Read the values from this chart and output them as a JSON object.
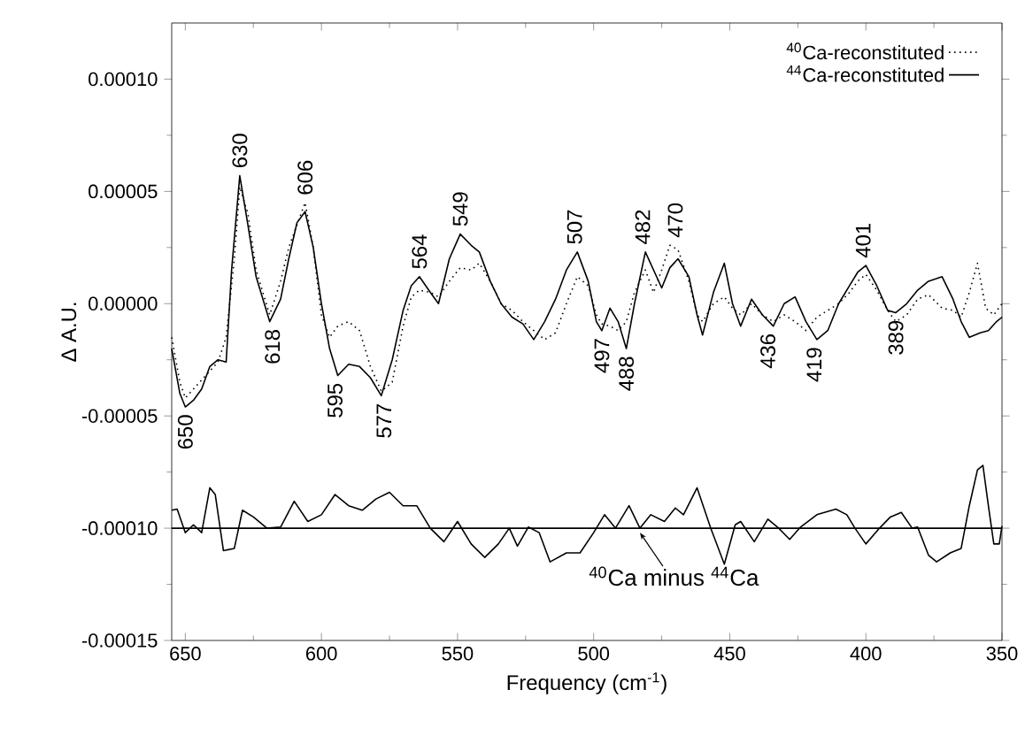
{
  "chart_data": {
    "type": "line",
    "xlabel": "Frequency (cm$^{-1}$)",
    "ylabel": "Δ A.U.",
    "xlim": [
      655,
      350
    ],
    "ylim": [
      -0.00015,
      0.000125
    ],
    "xticks": [
      650,
      600,
      550,
      500,
      450,
      400,
      350
    ],
    "yticks": [
      {
        "value": -0.00015,
        "label": "-0.00015"
      },
      {
        "value": -0.0001,
        "label": "-0.00010"
      },
      {
        "value": -5e-05,
        "label": "-0.00005"
      },
      {
        "value": 0,
        "label": "0.00000"
      },
      {
        "value": 5e-05,
        "label": "0.00005"
      },
      {
        "value": 0.0001,
        "label": "0.00010"
      }
    ],
    "legend": "top right",
    "series": [
      {
        "name": "$^{40}$Ca-reconstituted",
        "color": "#000000",
        "line_style": "dotted",
        "x": [
          655,
          652,
          650,
          647,
          644,
          641,
          638,
          635,
          632,
          630,
          627,
          624,
          619,
          615,
          612,
          609,
          606,
          603,
          600,
          597,
          594,
          590,
          586,
          582,
          578,
          574,
          570,
          567,
          564,
          560,
          557,
          553,
          549,
          545,
          542,
          538,
          534,
          530,
          526,
          522,
          518,
          514,
          510,
          506,
          502,
          499,
          497,
          494,
          491,
          488,
          485,
          481,
          478,
          475,
          472,
          469,
          465,
          462,
          460,
          456,
          452,
          449,
          446,
          442,
          438,
          434,
          430,
          426,
          422,
          418,
          414,
          410,
          406,
          403,
          400,
          396,
          392,
          389,
          385,
          381,
          377,
          372,
          368,
          365,
          362,
          359,
          356,
          353,
          350
        ],
        "values": [
          -1.5e-05,
          -3.5e-05,
          -4.2e-05,
          -3.8e-05,
          -3.4e-05,
          -3e-05,
          -2.6e-05,
          -1.5e-05,
          2e-05,
          5.2e-05,
          4e-05,
          1.5e-05,
          -5e-06,
          1e-05,
          2.5e-05,
          3.5e-05,
          4.5e-05,
          2.5e-05,
          -5e-06,
          -1.5e-05,
          -1e-05,
          -8e-06,
          -1.2e-05,
          -2.8e-05,
          -3.9e-05,
          -3.5e-05,
          -1e-05,
          3e-06,
          6e-06,
          5e-06,
          3e-06,
          1e-05,
          1.6e-05,
          1.5e-05,
          1.8e-05,
          1e-05,
          0.0,
          -3e-06,
          -8e-06,
          -1.2e-05,
          -1.6e-05,
          -1.3e-05,
          0.0,
          1.2e-05,
          8e-06,
          -5e-06,
          -9e-06,
          -1e-05,
          -1.2e-05,
          -8e-06,
          5e-06,
          1.5e-05,
          5e-06,
          1.5e-05,
          2.6e-05,
          2.4e-05,
          1e-05,
          -5e-06,
          -8e-06,
          0.0,
          3e-06,
          -2e-06,
          -5e-06,
          0.0,
          -5e-06,
          -8e-06,
          -5e-06,
          -8e-06,
          -1.2e-05,
          -6e-06,
          -3e-06,
          0.0,
          5e-06,
          1e-05,
          1.3e-05,
          6e-06,
          -3e-06,
          -8e-06,
          -5e-06,
          2e-06,
          4e-06,
          -2e-06,
          -3e-06,
          -6e-06,
          5e-06,
          1.8e-05,
          -2e-06,
          -5e-06,
          0.0
        ]
      },
      {
        "name": "$^{44}$Ca-reconstituted",
        "color": "#000000",
        "line_style": "solid",
        "x": [
          655,
          652,
          650,
          647,
          644,
          641,
          638,
          635,
          633,
          630,
          627,
          624,
          619,
          615,
          612,
          609,
          606,
          603,
          600,
          597,
          594,
          590,
          586,
          582,
          578,
          574,
          570,
          567,
          564,
          560,
          557,
          553,
          549,
          545,
          542,
          538,
          534,
          530,
          526,
          522,
          518,
          514,
          510,
          506,
          502,
          499,
          497,
          494,
          491,
          488,
          485,
          481,
          478,
          475,
          472,
          469,
          465,
          462,
          460,
          456,
          452,
          449,
          446,
          442,
          438,
          434,
          430,
          426,
          422,
          418,
          414,
          410,
          406,
          403,
          400,
          396,
          392,
          389,
          385,
          381,
          377,
          372,
          368,
          365,
          362,
          358,
          355,
          352,
          350
        ],
        "values": [
          -2e-05,
          -4e-05,
          -4.6e-05,
          -4.3e-05,
          -3.8e-05,
          -2.8e-05,
          -2.5e-05,
          -2.6e-05,
          1.5e-05,
          5.7e-05,
          3.5e-05,
          1.2e-05,
          -8e-06,
          2e-06,
          2e-05,
          3.6e-05,
          4.1e-05,
          2.5e-05,
          0.0,
          -2e-05,
          -3.2e-05,
          -2.7e-05,
          -2.8e-05,
          -3.3e-05,
          -4.1e-05,
          -2.5e-05,
          -3e-06,
          8e-06,
          1.2e-05,
          5e-06,
          0.0,
          2e-05,
          3.1e-05,
          2.6e-05,
          2.3e-05,
          1e-05,
          0.0,
          -6e-06,
          -9e-06,
          -1.6e-05,
          -8e-06,
          2e-06,
          1.5e-05,
          2.3e-05,
          1e-05,
          -8e-06,
          -1.2e-05,
          -2e-06,
          -8e-06,
          -2e-05,
          0.0,
          2.3e-05,
          1.5e-05,
          7e-06,
          1.6e-05,
          2e-05,
          1.2e-05,
          -5e-06,
          -1.4e-05,
          5e-06,
          1.8e-05,
          0.0,
          -1e-05,
          2e-06,
          -5e-06,
          -1e-05,
          0.0,
          3e-06,
          -8e-06,
          -1.6e-05,
          -1.2e-05,
          0.0,
          8e-06,
          1.4e-05,
          1.7e-05,
          8e-06,
          -3e-06,
          -4e-06,
          0.0,
          6e-06,
          1e-05,
          1.2e-05,
          2e-06,
          -8e-06,
          -1.5e-05,
          -1.3e-05,
          -1.2e-05,
          -8e-06,
          -6e-06
        ]
      },
      {
        "color": "#000000",
        "line_style": "solid",
        "x": [
          655,
          653,
          650,
          647,
          644,
          641,
          639,
          636,
          632,
          629,
          625,
          620,
          615,
          610,
          605,
          600,
          595,
          590,
          585,
          580,
          575,
          570,
          565,
          560,
          555,
          550,
          545,
          540,
          535,
          531,
          528,
          524,
          520,
          516,
          510,
          505,
          500,
          496,
          492,
          487,
          483,
          479,
          474,
          470,
          467,
          462,
          457,
          452,
          448,
          446,
          441,
          436,
          432,
          428,
          424,
          418,
          411,
          407,
          404,
          400,
          395,
          391,
          387,
          383,
          381,
          377,
          374,
          369,
          365,
          362,
          359,
          357,
          355,
          353,
          351,
          350
        ],
        "values": [
          -9.2e-05,
          -9.15e-05,
          -0.000102,
          -9.85e-05,
          -0.000102,
          -8.2e-05,
          -8.5e-05,
          -0.00011,
          -0.000109,
          -9.2e-05,
          -9.5e-05,
          -0.0001,
          -9.95e-05,
          -8.8e-05,
          -9.7e-05,
          -9.4e-05,
          -8.5e-05,
          -9e-05,
          -9.2e-05,
          -8.7e-05,
          -8.4e-05,
          -9e-05,
          -9e-05,
          -0.0001,
          -0.000106,
          -9.7e-05,
          -0.000107,
          -0.000113,
          -0.000107,
          -0.0001,
          -0.000108,
          -9.95e-05,
          -0.000102,
          -0.000115,
          -0.000111,
          -0.000111,
          -0.000102,
          -9.4e-05,
          -0.0001,
          -9e-05,
          -0.0001,
          -9.4e-05,
          -9.7e-05,
          -9.1e-05,
          -9.4e-05,
          -8.2e-05,
          -0.0001,
          -0.000116,
          -9.85e-05,
          -9.7e-05,
          -0.000106,
          -9.6e-05,
          -0.0001,
          -0.000105,
          -9.95e-05,
          -9.4e-05,
          -9.15e-05,
          -9.4e-05,
          -0.0001,
          -0.000107,
          -0.0001,
          -9.5e-05,
          -9.3e-05,
          -0.0001,
          -9.95e-05,
          -0.000112,
          -0.000115,
          -0.000111,
          -0.000109,
          -9e-05,
          -7.4e-05,
          -7.2e-05,
          -9e-05,
          -0.000107,
          -0.000107,
          -9.9e-05
        ]
      }
    ],
    "ref_lines": [
      {
        "axis": "y",
        "value": -0.0001,
        "color": "#000000",
        "line_style": "solid"
      }
    ],
    "annotations": [
      {
        "text": "630",
        "x": 630,
        "y": 5.7e-05
      },
      {
        "text": "606",
        "x": 606,
        "y": 4.5e-05
      },
      {
        "text": "564",
        "x": 564,
        "y": 1.2e-05
      },
      {
        "text": "549",
        "x": 549,
        "y": 3.1e-05
      },
      {
        "text": "507",
        "x": 507,
        "y": 2.3e-05
      },
      {
        "text": "482",
        "x": 482,
        "y": 2.3e-05
      },
      {
        "text": "470",
        "x": 470,
        "y": 2.6e-05
      },
      {
        "text": "401",
        "x": 401,
        "y": 1.7e-05
      },
      {
        "text": "650",
        "x": 650,
        "y": -4.6e-05
      },
      {
        "text": "618",
        "x": 618,
        "y": -8e-06
      },
      {
        "text": "595",
        "x": 595,
        "y": -3.2e-05
      },
      {
        "text": "577",
        "x": 577,
        "y": -4.1e-05
      },
      {
        "text": "497",
        "x": 497,
        "y": -1.2e-05
      },
      {
        "text": "488",
        "x": 488,
        "y": -2e-05
      },
      {
        "text": "436",
        "x": 436,
        "y": -1e-05
      },
      {
        "text": "419",
        "x": 419,
        "y": -1.6e-05
      },
      {
        "text": "389",
        "x": 389,
        "y": -4e-06
      },
      {
        "text": "$^{40}$Ca minus $^{44}$Ca",
        "x": 483,
        "y": -0.000102
      }
    ]
  }
}
